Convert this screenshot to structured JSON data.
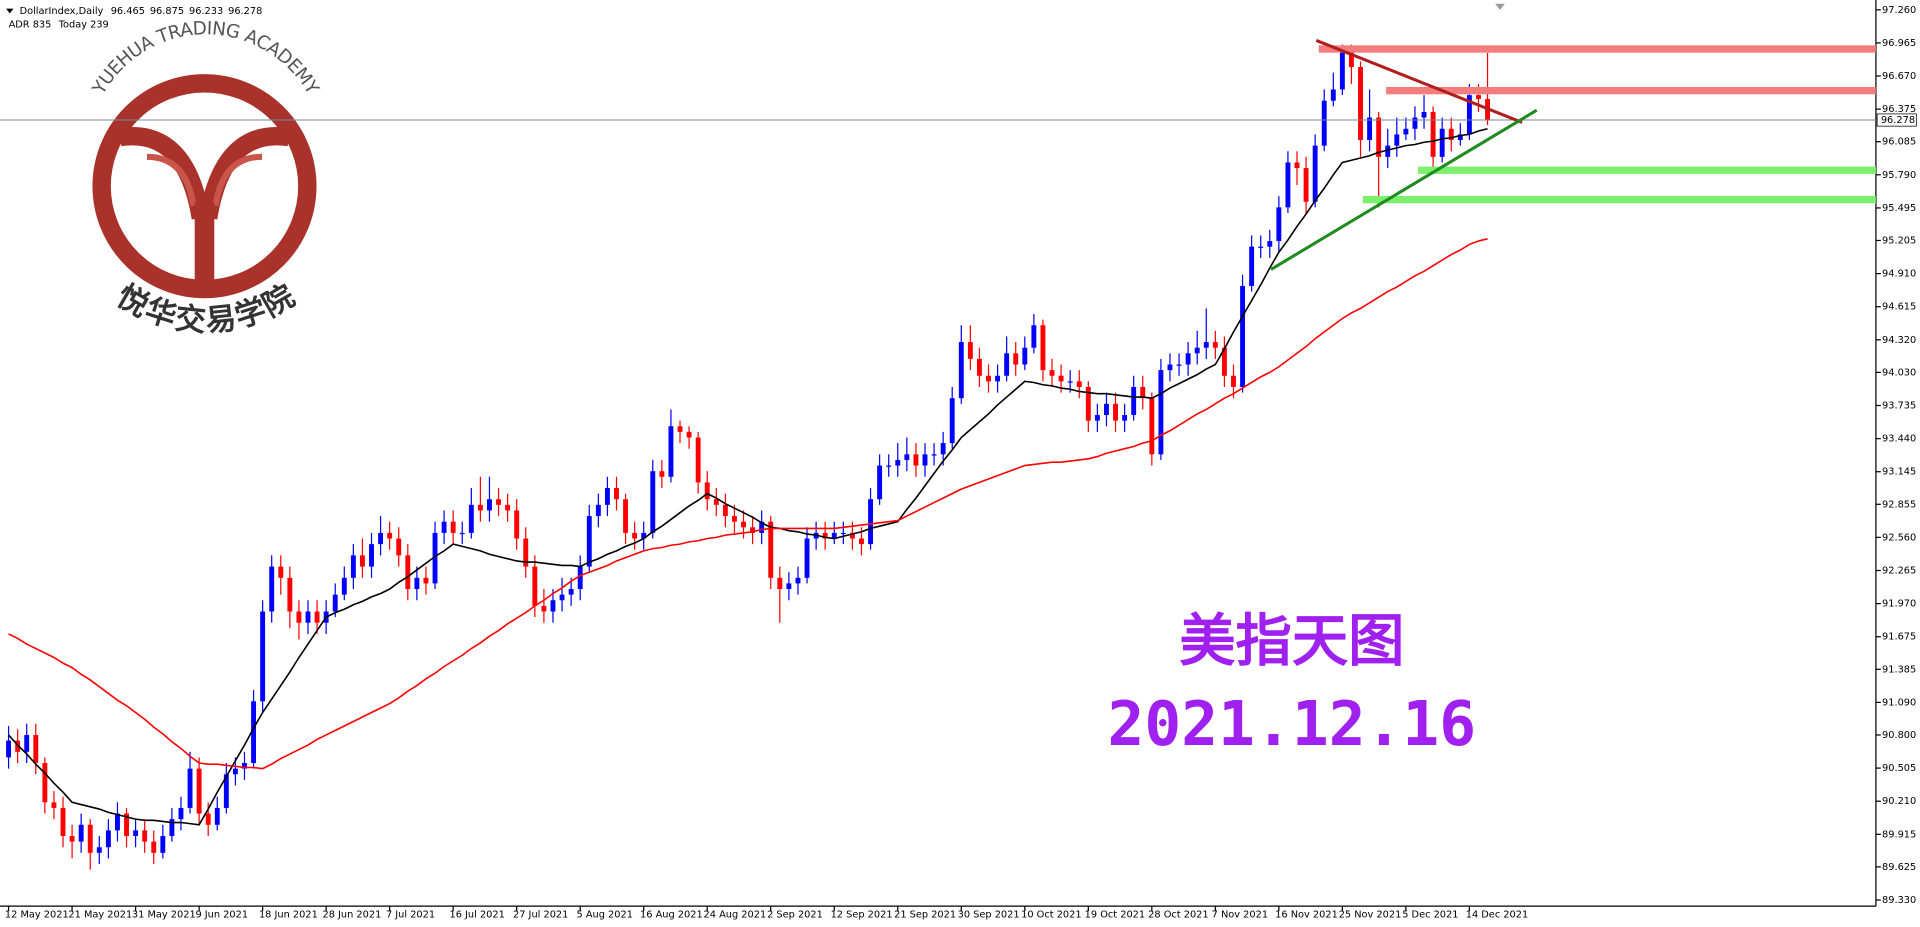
{
  "chart_data": {
    "type": "candlestick",
    "symbol": "DollarIndex,Daily",
    "info": [
      "ADR 835",
      "Today 239"
    ],
    "watermark": {
      "top": "YUEHUA TRADING ACADEMY",
      "bottom": "悦华交易学院"
    },
    "annotations": [
      "美指天图",
      "2021.12.16"
    ],
    "up_color": "#0000ff",
    "down_color": "#ff0000",
    "price_line_color": "#778899",
    "ylim": [
      89.275,
      97.347
    ],
    "yticks": [
      {
        "value": 97.26,
        "label": "97.260"
      },
      96.965,
      {
        "value": 96.67,
        "label": "96.670"
      },
      96.375,
      96.085,
      {
        "value": 95.79,
        "label": "95.790"
      },
      95.495,
      95.205,
      {
        "value": 94.91,
        "label": "94.910"
      },
      94.615,
      {
        "value": 94.32,
        "label": "94.320"
      },
      {
        "value": 94.03,
        "label": "94.030"
      },
      93.735,
      {
        "value": 93.44,
        "label": "93.440"
      },
      93.145,
      92.855,
      {
        "value": 92.56,
        "label": "92.560"
      },
      92.265,
      {
        "value": 91.97,
        "label": "91.970"
      },
      91.675,
      91.385,
      {
        "value": 91.09,
        "label": "91.090"
      },
      {
        "value": 90.8,
        "label": "90.800"
      },
      90.505,
      {
        "value": 90.21,
        "label": "90.210"
      },
      89.915,
      89.625,
      {
        "value": 89.33,
        "label": "89.330"
      }
    ],
    "categories": [
      "12 May 2021",
      null,
      null,
      null,
      null,
      null,
      null,
      "21 May 2021",
      null,
      null,
      null,
      null,
      null,
      null,
      "31 May 2021",
      null,
      null,
      null,
      null,
      null,
      null,
      "9 Jun 2021",
      null,
      null,
      null,
      null,
      null,
      null,
      "18 Jun 2021",
      null,
      null,
      null,
      null,
      null,
      null,
      "28 Jun 2021",
      null,
      null,
      null,
      null,
      null,
      null,
      "7 Jul 2021",
      null,
      null,
      null,
      null,
      null,
      null,
      "16 Jul 2021",
      null,
      null,
      null,
      null,
      null,
      null,
      "27 Jul 2021",
      null,
      null,
      null,
      null,
      null,
      null,
      "5 Aug 2021",
      null,
      null,
      null,
      null,
      null,
      null,
      "16 Aug 2021",
      null,
      null,
      null,
      null,
      null,
      null,
      "24 Aug 2021",
      null,
      null,
      null,
      null,
      null,
      null,
      "2 Sep 2021",
      null,
      null,
      null,
      null,
      null,
      null,
      "12 Sep 2021",
      null,
      null,
      null,
      null,
      null,
      null,
      "21 Sep 2021",
      null,
      null,
      null,
      null,
      null,
      null,
      "30 Sep 2021",
      null,
      null,
      null,
      null,
      null,
      null,
      "10 Oct 2021",
      null,
      null,
      null,
      null,
      null,
      null,
      "19 Oct 2021",
      null,
      null,
      null,
      null,
      null,
      null,
      "28 Oct 2021",
      null,
      null,
      null,
      null,
      null,
      null,
      "7 Nov 2021",
      null,
      null,
      null,
      null,
      null,
      null,
      "16 Nov 2021",
      null,
      null,
      null,
      null,
      null,
      null,
      "25 Nov 2021",
      null,
      null,
      null,
      null,
      null,
      null,
      "5 Dec 2021",
      null,
      null,
      null,
      null,
      null,
      null,
      "14 Dec 2021",
      null,
      null
    ],
    "open": [
      90.6,
      90.75,
      90.65,
      90.8,
      90.55,
      90.2,
      90.15,
      89.9,
      89.85,
      90.0,
      89.75,
      89.8,
      89.95,
      90.1,
      89.9,
      89.95,
      89.85,
      89.75,
      89.9,
      90.05,
      90.15,
      90.5,
      90.1,
      90.0,
      90.15,
      90.45,
      90.5,
      90.55,
      91.1,
      91.9,
      92.3,
      92.2,
      91.9,
      91.8,
      91.9,
      91.8,
      91.9,
      92.05,
      92.2,
      92.4,
      92.3,
      92.5,
      92.6,
      92.55,
      92.4,
      92.1,
      92.2,
      92.15,
      92.6,
      92.7,
      92.6,
      92.6,
      92.85,
      92.8,
      92.9,
      92.85,
      92.8,
      92.55,
      92.3,
      91.95,
      91.9,
      92.0,
      92.05,
      92.1,
      92.3,
      92.75,
      92.85,
      93.0,
      92.9,
      92.6,
      92.55,
      92.6,
      93.15,
      93.1,
      93.55,
      93.5,
      93.45,
      93.05,
      92.9,
      92.85,
      92.75,
      92.7,
      92.65,
      92.6,
      92.7,
      92.2,
      92.1,
      92.15,
      92.2,
      92.55,
      92.6,
      92.55,
      92.6,
      92.6,
      92.55,
      92.5,
      92.9,
      93.2,
      93.2,
      93.25,
      93.3,
      93.2,
      93.3,
      93.3,
      93.4,
      93.8,
      94.3,
      94.15,
      94.0,
      93.95,
      94.0,
      94.2,
      94.1,
      94.25,
      94.45,
      94.05,
      94.0,
      93.95,
      93.95,
      93.9,
      93.6,
      93.65,
      93.75,
      93.6,
      93.65,
      93.9,
      93.8,
      93.3,
      94.05,
      94.1,
      94.1,
      94.2,
      94.25,
      94.3,
      94.25,
      94.0,
      93.9,
      94.8,
      95.15,
      95.15,
      95.2,
      95.5,
      95.9,
      95.85,
      95.55,
      96.05,
      96.45,
      96.55,
      96.9,
      96.75,
      96.1,
      96.3,
      95.95,
      96.05,
      96.15,
      96.2,
      96.3,
      96.35,
      95.95,
      96.2,
      96.1,
      96.15,
      96.5,
      96.465
    ],
    "high": [
      90.88,
      90.85,
      90.9,
      90.9,
      90.6,
      90.3,
      90.25,
      90.0,
      90.1,
      90.05,
      89.9,
      90.05,
      90.2,
      90.15,
      90.05,
      90.05,
      89.95,
      90.0,
      90.15,
      90.25,
      90.65,
      90.6,
      90.2,
      90.25,
      90.55,
      90.6,
      90.65,
      91.2,
      92.0,
      92.4,
      92.4,
      92.3,
      92.0,
      92.0,
      92.0,
      92.0,
      92.15,
      92.3,
      92.5,
      92.55,
      92.6,
      92.75,
      92.7,
      92.65,
      92.5,
      92.3,
      92.3,
      92.7,
      92.8,
      92.8,
      92.7,
      93.0,
      93.1,
      93.1,
      93.0,
      92.95,
      92.9,
      92.65,
      92.4,
      92.1,
      92.1,
      92.2,
      92.2,
      92.4,
      92.85,
      92.95,
      93.1,
      93.1,
      92.95,
      92.7,
      92.7,
      93.25,
      93.25,
      93.7,
      93.6,
      93.55,
      93.5,
      93.15,
      93.0,
      92.95,
      92.85,
      92.8,
      92.75,
      92.8,
      92.75,
      92.3,
      92.25,
      92.3,
      92.65,
      92.7,
      92.7,
      92.7,
      92.7,
      92.7,
      92.65,
      93.0,
      93.3,
      93.3,
      93.4,
      93.45,
      93.4,
      93.4,
      93.4,
      93.5,
      93.9,
      94.45,
      94.45,
      94.25,
      94.1,
      94.1,
      94.35,
      94.3,
      94.35,
      94.55,
      94.5,
      94.15,
      94.1,
      94.05,
      94.05,
      93.95,
      93.75,
      93.85,
      93.85,
      93.75,
      94.0,
      94.0,
      93.85,
      94.15,
      94.2,
      94.2,
      94.3,
      94.4,
      94.6,
      94.4,
      94.35,
      94.1,
      94.9,
      95.25,
      95.25,
      95.3,
      95.6,
      96.0,
      96.0,
      95.95,
      96.15,
      96.55,
      96.7,
      96.95,
      96.95,
      96.8,
      96.55,
      96.35,
      96.2,
      96.3,
      96.3,
      96.4,
      96.5,
      96.4,
      96.3,
      96.3,
      96.25,
      96.6,
      96.6,
      96.875
    ],
    "low": [
      90.5,
      90.55,
      90.55,
      90.45,
      90.1,
      90.05,
      89.8,
      89.7,
      89.75,
      89.6,
      89.65,
      89.7,
      89.85,
      89.8,
      89.8,
      89.75,
      89.65,
      89.7,
      89.85,
      89.95,
      90.1,
      90.0,
      89.9,
      89.95,
      90.1,
      90.35,
      90.4,
      90.5,
      91.0,
      91.8,
      92.05,
      91.75,
      91.65,
      91.7,
      91.7,
      91.7,
      91.85,
      92.0,
      92.1,
      92.2,
      92.2,
      92.4,
      92.45,
      92.3,
      92.0,
      92.0,
      92.05,
      92.1,
      92.5,
      92.5,
      92.5,
      92.55,
      92.7,
      92.7,
      92.75,
      92.7,
      92.45,
      92.2,
      91.85,
      91.8,
      91.8,
      91.9,
      91.95,
      92.0,
      92.25,
      92.65,
      92.75,
      92.8,
      92.5,
      92.45,
      92.45,
      92.55,
      93.0,
      93.05,
      93.4,
      93.35,
      92.95,
      92.8,
      92.75,
      92.65,
      92.6,
      92.55,
      92.5,
      92.5,
      92.1,
      91.8,
      92.0,
      92.05,
      92.15,
      92.45,
      92.45,
      92.5,
      92.5,
      92.45,
      92.4,
      92.45,
      92.85,
      93.1,
      93.1,
      93.15,
      93.1,
      93.1,
      93.2,
      93.2,
      93.35,
      93.75,
      94.05,
      93.9,
      93.85,
      93.85,
      93.95,
      94.0,
      94.05,
      94.2,
      93.95,
      93.9,
      93.85,
      93.85,
      93.8,
      93.5,
      93.5,
      93.55,
      93.5,
      93.5,
      93.6,
      93.7,
      93.2,
      93.25,
      93.95,
      94.0,
      94.0,
      94.1,
      94.15,
      94.15,
      93.9,
      93.8,
      93.85,
      94.75,
      95.05,
      95.05,
      95.1,
      95.45,
      95.7,
      95.45,
      95.5,
      96.0,
      96.4,
      96.5,
      96.6,
      95.95,
      96.0,
      95.5,
      95.85,
      95.95,
      96.1,
      96.1,
      96.2,
      95.85,
      95.9,
      96.0,
      96.05,
      96.1,
      96.35,
      96.233
    ],
    "close": [
      90.75,
      90.65,
      90.8,
      90.55,
      90.2,
      90.15,
      89.9,
      89.85,
      90.0,
      89.75,
      89.8,
      89.95,
      90.1,
      89.9,
      89.95,
      89.85,
      89.75,
      89.9,
      90.05,
      90.15,
      90.5,
      90.1,
      90.0,
      90.15,
      90.45,
      90.5,
      90.55,
      91.1,
      91.9,
      92.3,
      92.2,
      91.9,
      91.8,
      91.9,
      91.8,
      91.9,
      92.05,
      92.2,
      92.4,
      92.3,
      92.5,
      92.6,
      92.55,
      92.4,
      92.1,
      92.2,
      92.15,
      92.6,
      92.7,
      92.6,
      92.6,
      92.85,
      92.8,
      92.9,
      92.85,
      92.8,
      92.55,
      92.3,
      91.95,
      91.9,
      92.0,
      92.05,
      92.1,
      92.3,
      92.75,
      92.85,
      93.0,
      92.9,
      92.6,
      92.55,
      92.6,
      93.15,
      93.1,
      93.55,
      93.5,
      93.45,
      93.05,
      92.9,
      92.85,
      92.75,
      92.7,
      92.65,
      92.6,
      92.7,
      92.2,
      92.1,
      92.15,
      92.2,
      92.55,
      92.6,
      92.55,
      92.6,
      92.6,
      92.55,
      92.5,
      92.9,
      93.2,
      93.2,
      93.25,
      93.3,
      93.2,
      93.3,
      93.3,
      93.4,
      93.8,
      94.3,
      94.15,
      94.0,
      93.95,
      94.0,
      94.2,
      94.1,
      94.25,
      94.45,
      94.05,
      94.0,
      93.95,
      93.95,
      93.9,
      93.6,
      93.65,
      93.75,
      93.6,
      93.65,
      93.9,
      93.8,
      93.3,
      94.05,
      94.1,
      94.1,
      94.2,
      94.25,
      94.3,
      94.25,
      94.0,
      93.9,
      94.8,
      95.15,
      95.15,
      95.2,
      95.5,
      95.9,
      95.85,
      95.55,
      96.05,
      96.45,
      96.55,
      96.9,
      96.75,
      96.1,
      96.3,
      95.95,
      96.05,
      96.15,
      96.2,
      96.3,
      96.35,
      95.95,
      96.2,
      96.1,
      96.15,
      96.5,
      96.465,
      96.278
    ],
    "lines": [
      {
        "color": "#000000",
        "values": [
          90.8,
          90.71,
          90.63,
          90.54,
          90.46,
          90.37,
          90.29,
          90.2,
          90.18,
          90.16,
          90.14,
          90.11,
          90.09,
          90.07,
          90.05,
          90.04,
          90.04,
          90.03,
          90.02,
          90.02,
          90.01,
          90.0,
          90.14,
          90.29,
          90.43,
          90.57,
          90.71,
          90.86,
          91.0,
          91.12,
          91.24,
          91.36,
          91.49,
          91.61,
          91.73,
          91.85,
          91.89,
          91.92,
          91.96,
          91.99,
          92.03,
          92.06,
          92.1,
          92.16,
          92.21,
          92.27,
          92.33,
          92.39,
          92.44,
          92.5,
          92.48,
          92.46,
          92.44,
          92.41,
          92.39,
          92.37,
          92.35,
          92.34,
          92.34,
          92.33,
          92.32,
          92.31,
          92.31,
          92.3,
          92.34,
          92.37,
          92.41,
          92.44,
          92.48,
          92.51,
          92.55,
          92.61,
          92.66,
          92.72,
          92.78,
          92.84,
          92.89,
          92.95,
          92.91,
          92.86,
          92.82,
          92.78,
          92.74,
          92.69,
          92.65,
          92.64,
          92.62,
          92.61,
          92.59,
          92.58,
          92.56,
          92.55,
          92.57,
          92.59,
          92.61,
          92.64,
          92.66,
          92.68,
          92.7,
          92.81,
          92.91,
          93.02,
          93.13,
          93.24,
          93.34,
          93.45,
          93.52,
          93.59,
          93.66,
          93.74,
          93.81,
          93.88,
          93.95,
          93.94,
          93.92,
          93.91,
          93.89,
          93.88,
          93.86,
          93.85,
          93.84,
          93.84,
          93.83,
          93.82,
          93.81,
          93.81,
          93.8,
          93.84,
          93.89,
          93.93,
          93.97,
          94.01,
          94.06,
          94.1,
          94.24,
          94.39,
          94.53,
          94.67,
          94.81,
          94.96,
          95.1,
          95.21,
          95.33,
          95.44,
          95.56,
          95.67,
          95.79,
          95.9,
          95.92,
          95.94,
          95.96,
          95.99,
          96.01,
          96.03,
          96.05,
          96.06,
          96.08,
          96.09,
          96.11,
          96.12,
          96.14,
          96.15,
          96.18,
          96.2
        ]
      },
      {
        "color": "#ff0000",
        "values": [
          91.7,
          91.66,
          91.61,
          91.57,
          91.53,
          91.49,
          91.44,
          91.4,
          91.34,
          91.29,
          91.23,
          91.17,
          91.11,
          91.06,
          91.0,
          90.94,
          90.87,
          90.81,
          90.74,
          90.68,
          90.61,
          90.55,
          90.54,
          90.54,
          90.53,
          90.52,
          90.51,
          90.51,
          90.5,
          90.54,
          90.59,
          90.63,
          90.67,
          90.71,
          90.76,
          90.8,
          90.84,
          90.88,
          90.92,
          90.96,
          91.0,
          91.04,
          91.08,
          91.13,
          91.19,
          91.24,
          91.3,
          91.35,
          91.41,
          91.46,
          91.51,
          91.57,
          91.62,
          91.68,
          91.73,
          91.79,
          91.84,
          91.89,
          91.95,
          92.0,
          92.06,
          92.11,
          92.17,
          92.22,
          92.25,
          92.28,
          92.31,
          92.35,
          92.38,
          92.41,
          92.44,
          92.46,
          92.47,
          92.49,
          92.5,
          92.52,
          92.53,
          92.55,
          92.56,
          92.58,
          92.59,
          92.6,
          92.61,
          92.63,
          92.64,
          92.64,
          92.64,
          92.64,
          92.64,
          92.64,
          92.64,
          92.64,
          92.65,
          92.66,
          92.67,
          92.68,
          92.69,
          92.7,
          92.71,
          92.75,
          92.79,
          92.83,
          92.87,
          92.91,
          92.95,
          92.99,
          93.02,
          93.05,
          93.08,
          93.11,
          93.14,
          93.17,
          93.2,
          93.21,
          93.22,
          93.23,
          93.23,
          93.24,
          93.25,
          93.26,
          93.28,
          93.31,
          93.33,
          93.35,
          93.37,
          93.4,
          93.42,
          93.47,
          93.51,
          93.56,
          93.61,
          93.66,
          93.7,
          93.75,
          93.8,
          93.84,
          93.89,
          93.94,
          93.99,
          94.03,
          94.08,
          94.14,
          94.2,
          94.26,
          94.33,
          94.39,
          94.45,
          94.51,
          94.56,
          94.6,
          94.65,
          94.7,
          94.75,
          94.79,
          94.84,
          94.89,
          94.93,
          94.98,
          95.03,
          95.08,
          95.12,
          95.17,
          95.2,
          95.22
        ]
      }
    ]
  }
}
